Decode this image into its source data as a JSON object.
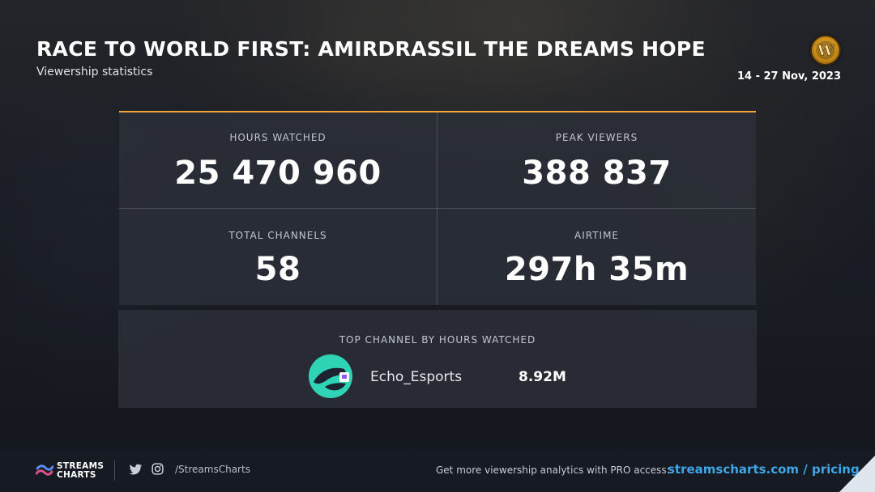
{
  "header": {
    "title": "RACE TO WORLD FIRST: AMIRDRASSIL THE DREAMS HOPE",
    "subtitle": "Viewership statistics",
    "date_range": "14 - 27 Nov, 2023",
    "logo_letter": "W"
  },
  "stats": [
    {
      "label": "HOURS WATCHED",
      "value": "25 470 960"
    },
    {
      "label": "PEAK VIEWERS",
      "value": "388 837"
    },
    {
      "label": "TOTAL CHANNELS",
      "value": "58"
    },
    {
      "label": "AIRTIME",
      "value": "297h 35m"
    }
  ],
  "top_channel": {
    "label": "TOP CHANNEL BY HOURS WATCHED",
    "name": "Echo_Esports",
    "hours": "8.92M",
    "avatar_color": "#2fd3b5"
  },
  "footer": {
    "brand_line1": "STREAMS",
    "brand_line2": "CHARTS",
    "handle": "/StreamsCharts",
    "promo_text": "Get more viewership analytics with PRO access:",
    "promo_link": "streamscharts.com / pricing"
  },
  "colors": {
    "accent": "#f0a63a",
    "link": "#3fa6e8"
  },
  "icons": [
    "wow-logo-icon",
    "echo-avatar-icon",
    "streamscharts-logo-icon",
    "twitter-icon",
    "instagram-icon"
  ]
}
